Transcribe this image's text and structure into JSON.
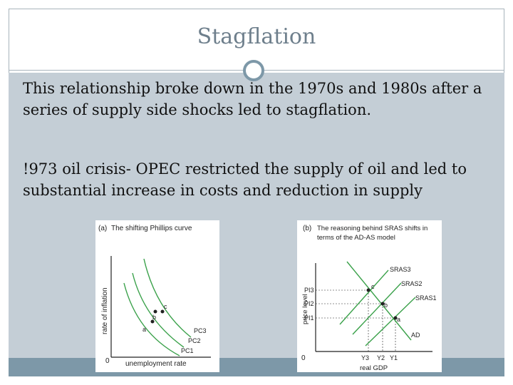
{
  "slide": {
    "title": "Stagflation",
    "paragraph1": "This relationship broke down in the 1970s and 1980s after a series of supply side shocks led to stagflation.",
    "paragraph2": "!973 oil crisis- OPEC restricted the supply of oil and led to substantial increase in costs and reduction in supply"
  },
  "figure_a": {
    "panel_tag": "(a)",
    "title": "The shifting Phillips curve",
    "ylabel": "rate of inflation",
    "xlabel": "unemployment rate",
    "origin": "0",
    "points": [
      "a",
      "b",
      "c"
    ],
    "curves": [
      "PC3",
      "PC2",
      "PC1"
    ],
    "curve_color": "#3aa14a"
  },
  "figure_b": {
    "panel_tag": "(b)",
    "title_line1": "The reasoning behind SRAS shifts in",
    "title_line2": "terms of the AD-AS model",
    "ylabel": "price level",
    "xlabel": "real GDP",
    "origin": "0",
    "price_levels": [
      "PI3",
      "PI2",
      "PI1"
    ],
    "outputs": [
      "Y3",
      "Y2",
      "Y1"
    ],
    "curves": [
      "SRAS3",
      "SRAS2",
      "SRAS1",
      "AD"
    ],
    "points": [
      "c",
      "b",
      "a"
    ],
    "curve_color": "#3aa14a"
  }
}
